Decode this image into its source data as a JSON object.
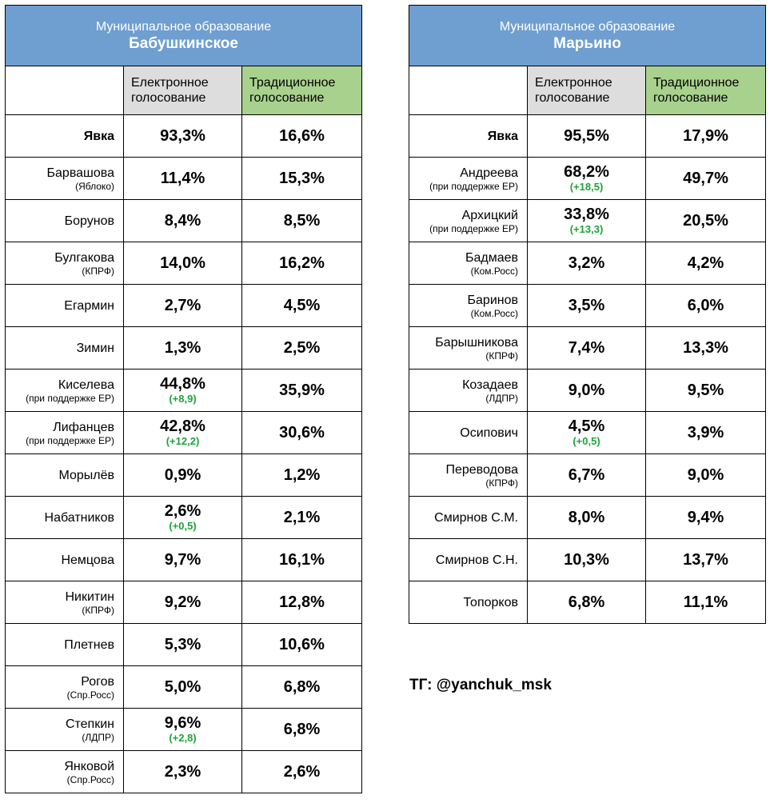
{
  "header_electronic": "Електронное голосование",
  "header_traditional": "Традиционное голосование",
  "tables": [
    {
      "subtitle": "Муниципальное образование",
      "title": "Бабушкинское",
      "rows": [
        {
          "name": "Явка",
          "note": "",
          "electronic": "93,3%",
          "delta": "",
          "traditional": "16,6%"
        },
        {
          "name": "Барвашова",
          "note": "(Яблоко)",
          "electronic": "11,4%",
          "delta": "",
          "traditional": "15,3%"
        },
        {
          "name": "Борунов",
          "note": "",
          "electronic": "8,4%",
          "delta": "",
          "traditional": "8,5%"
        },
        {
          "name": "Булгакова",
          "note": "(КПРФ)",
          "electronic": "14,0%",
          "delta": "",
          "traditional": "16,2%"
        },
        {
          "name": "Егармин",
          "note": "",
          "electronic": "2,7%",
          "delta": "",
          "traditional": "4,5%"
        },
        {
          "name": "Зимин",
          "note": "",
          "electronic": "1,3%",
          "delta": "",
          "traditional": "2,5%"
        },
        {
          "name": "Киселева",
          "note": "(при поддержке ЕР)",
          "electronic": "44,8%",
          "delta": "(+8,9)",
          "traditional": "35,9%"
        },
        {
          "name": "Лифанцев",
          "note": "(при поддержке ЕР)",
          "electronic": "42,8%",
          "delta": "(+12,2)",
          "traditional": "30,6%"
        },
        {
          "name": "Морылёв",
          "note": "",
          "electronic": "0,9%",
          "delta": "",
          "traditional": "1,2%"
        },
        {
          "name": "Набатников",
          "note": "",
          "electronic": "2,6%",
          "delta": "(+0,5)",
          "traditional": "2,1%"
        },
        {
          "name": "Немцова",
          "note": "",
          "electronic": "9,7%",
          "delta": "",
          "traditional": "16,1%"
        },
        {
          "name": "Никитин",
          "note": "(КПРФ)",
          "electronic": "9,2%",
          "delta": "",
          "traditional": "12,8%"
        },
        {
          "name": "Плетнев",
          "note": "",
          "electronic": "5,3%",
          "delta": "",
          "traditional": "10,6%"
        },
        {
          "name": "Рогов",
          "note": "(Спр.Росс)",
          "electronic": "5,0%",
          "delta": "",
          "traditional": "6,8%"
        },
        {
          "name": "Степкин",
          "note": "(ЛДПР)",
          "electronic": "9,6%",
          "delta": "(+2,8)",
          "traditional": "6,8%"
        },
        {
          "name": "Янковой",
          "note": "(Спр.Росс)",
          "electronic": "2,3%",
          "delta": "",
          "traditional": "2,6%"
        }
      ]
    },
    {
      "subtitle": "Муниципальное образование",
      "title": "Марьино",
      "rows": [
        {
          "name": "Явка",
          "note": "",
          "electronic": "95,5%",
          "delta": "",
          "traditional": "17,9%"
        },
        {
          "name": "Андреева",
          "note": "(при поддержке ЕР)",
          "electronic": "68,2%",
          "delta": "(+18,5)",
          "traditional": "49,7%"
        },
        {
          "name": "Архицкий",
          "note": "(при поддержке ЕР)",
          "electronic": "33,8%",
          "delta": "(+13,3)",
          "traditional": "20,5%"
        },
        {
          "name": "Бадмаев",
          "note": "(Ком.Росс)",
          "electronic": "3,2%",
          "delta": "",
          "traditional": "4,2%"
        },
        {
          "name": "Баринов",
          "note": "(Ком.Росс)",
          "electronic": "3,5%",
          "delta": "",
          "traditional": "6,0%"
        },
        {
          "name": "Барышникова",
          "note": "(КПРФ)",
          "electronic": "7,4%",
          "delta": "",
          "traditional": "13,3%"
        },
        {
          "name": "Козадаев",
          "note": "(ЛДПР)",
          "electronic": "9,0%",
          "delta": "",
          "traditional": "9,5%"
        },
        {
          "name": "Осипович",
          "note": "",
          "electronic": "4,5%",
          "delta": "(+0,5)",
          "traditional": "3,9%"
        },
        {
          "name": "Переводова",
          "note": "(КПРФ)",
          "electronic": "6,7%",
          "delta": "",
          "traditional": "9,0%"
        },
        {
          "name": "Смирнов С.М.",
          "note": "",
          "electronic": "8,0%",
          "delta": "",
          "traditional": "9,4%"
        },
        {
          "name": "Смирнов С.Н.",
          "note": "",
          "electronic": "10,3%",
          "delta": "",
          "traditional": "13,7%"
        },
        {
          "name": "Топорков",
          "note": "",
          "electronic": "6,8%",
          "delta": "",
          "traditional": "11,1%"
        }
      ]
    }
  ],
  "footer": "ТГ: @yanchuk_msk",
  "colors": {
    "title_bg": "#6f9fd0",
    "electronic_header_bg": "#dddddd",
    "traditional_header_bg": "#a9d18e",
    "delta_text": "#1ea33a"
  }
}
